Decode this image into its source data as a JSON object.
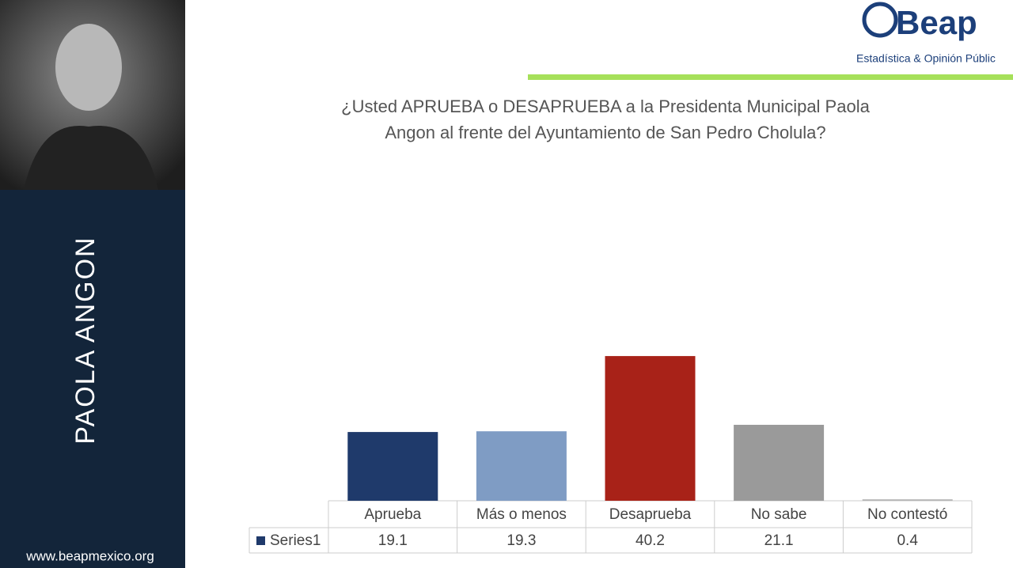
{
  "sidebar": {
    "name": "PAOLA ANGON",
    "website": "www.beapmexico.org"
  },
  "logo": {
    "brand": "Beap",
    "tagline": "Estadística & Opinión Públic"
  },
  "chart_data": {
    "type": "bar",
    "title": "¿Usted APRUEBA o DESAPRUEBA a la Presidenta Municipal Paola Angon al frente del Ayuntamiento de San Pedro Cholula?",
    "categories": [
      "Aprueba",
      "Más o menos",
      "Desaprueba",
      "No sabe",
      "No contestó"
    ],
    "series": [
      {
        "name": "Series1",
        "color": "#1f3a6b",
        "values": [
          19.1,
          19.3,
          40.2,
          21.1,
          0.4
        ]
      }
    ],
    "point_colors": [
      "#1f3a6b",
      "#7f9cc4",
      "#a82218",
      "#9a9a9a",
      "#b5b5b5"
    ],
    "data_table": true
  }
}
